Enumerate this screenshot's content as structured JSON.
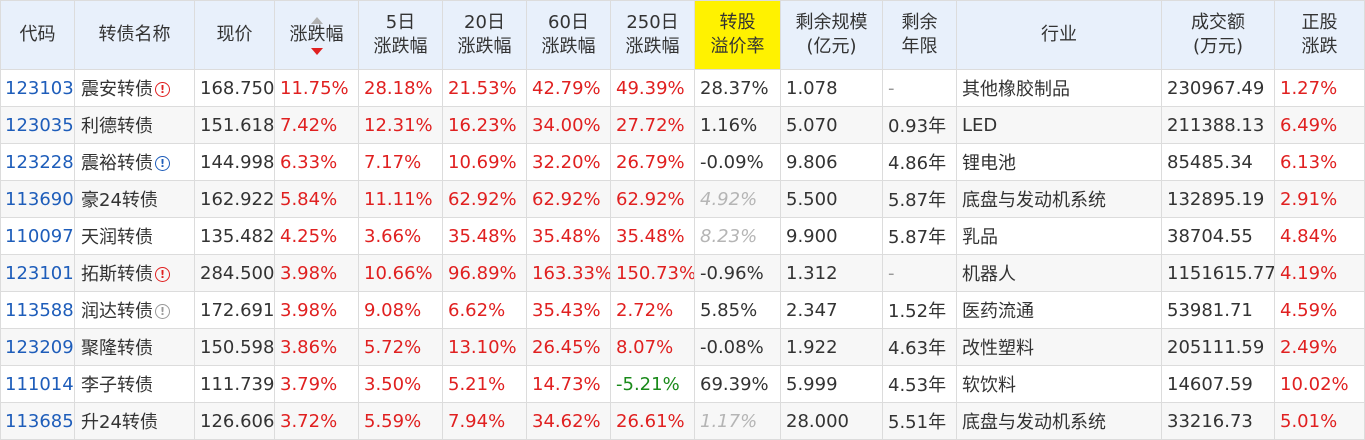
{
  "headers": {
    "code": "代码",
    "name": "转债名称",
    "price": "现价",
    "change": "涨跌幅",
    "chg5_line1": "5日",
    "chg5_line2": "涨跌幅",
    "chg20_line1": "20日",
    "chg20_line2": "涨跌幅",
    "chg60_line1": "60日",
    "chg60_line2": "涨跌幅",
    "chg250_line1": "250日",
    "chg250_line2": "涨跌幅",
    "premium_line1": "转股",
    "premium_line2": "溢价率",
    "remain_scale_line1": "剩余规模",
    "remain_scale_line2": "(亿元)",
    "remain_years_line1": "剩余",
    "remain_years_line2": "年限",
    "industry": "行业",
    "turnover_line1": "成交额",
    "turnover_line2": "(万元)",
    "stock_change_line1": "正股",
    "stock_change_line2": "涨跌"
  },
  "rows": [
    {
      "code": "123103",
      "name": "震安转债",
      "badge": "red",
      "price": "168.750",
      "change": "11.75%",
      "chg5": "28.18%",
      "chg20": "21.53%",
      "chg60": "42.79%",
      "chg250": "49.39%",
      "premium": "28.37%",
      "premium_muted": false,
      "scale": "1.078",
      "years": "-",
      "industry": "其他橡胶制品",
      "turnover": "230967.49",
      "stock_change": "1.27%"
    },
    {
      "code": "123035",
      "name": "利德转债",
      "badge": "",
      "price": "151.618",
      "change": "7.42%",
      "chg5": "12.31%",
      "chg20": "16.23%",
      "chg60": "34.00%",
      "chg250": "27.72%",
      "premium": "1.16%",
      "premium_muted": false,
      "scale": "5.070",
      "years": "0.93年",
      "industry": "LED",
      "turnover": "211388.13",
      "stock_change": "6.49%"
    },
    {
      "code": "123228",
      "name": "震裕转债",
      "badge": "blue",
      "price": "144.998",
      "change": "6.33%",
      "chg5": "7.17%",
      "chg20": "10.69%",
      "chg60": "32.20%",
      "chg250": "26.79%",
      "premium": "-0.09%",
      "premium_muted": false,
      "scale": "9.806",
      "years": "4.86年",
      "industry": "锂电池",
      "turnover": "85485.34",
      "stock_change": "6.13%"
    },
    {
      "code": "113690",
      "name": "豪24转债",
      "badge": "",
      "price": "162.922",
      "change": "5.84%",
      "chg5": "11.11%",
      "chg20": "62.92%",
      "chg60": "62.92%",
      "chg250": "62.92%",
      "premium": "4.92%",
      "premium_muted": true,
      "scale": "5.500",
      "years": "5.87年",
      "industry": "底盘与发动机系统",
      "turnover": "132895.19",
      "stock_change": "2.91%"
    },
    {
      "code": "110097",
      "name": "天润转债",
      "badge": "",
      "price": "135.482",
      "change": "4.25%",
      "chg5": "3.66%",
      "chg20": "35.48%",
      "chg60": "35.48%",
      "chg250": "35.48%",
      "premium": "8.23%",
      "premium_muted": true,
      "scale": "9.900",
      "years": "5.87年",
      "industry": "乳品",
      "turnover": "38704.55",
      "stock_change": "4.84%"
    },
    {
      "code": "123101",
      "name": "拓斯转债",
      "badge": "red",
      "price": "284.500",
      "change": "3.98%",
      "chg5": "10.66%",
      "chg20": "96.89%",
      "chg60": "163.33%",
      "chg250": "150.73%",
      "premium": "-0.96%",
      "premium_muted": false,
      "scale": "1.312",
      "years": "-",
      "industry": "机器人",
      "turnover": "1151615.77",
      "stock_change": "4.19%"
    },
    {
      "code": "113588",
      "name": "润达转债",
      "badge": "gray",
      "price": "172.691",
      "change": "3.98%",
      "chg5": "9.08%",
      "chg20": "6.62%",
      "chg60": "35.43%",
      "chg250": "2.72%",
      "premium": "5.85%",
      "premium_muted": false,
      "scale": "2.347",
      "years": "1.52年",
      "industry": "医药流通",
      "turnover": "53981.71",
      "stock_change": "4.59%"
    },
    {
      "code": "123209",
      "name": "聚隆转债",
      "badge": "",
      "price": "150.598",
      "change": "3.86%",
      "chg5": "5.72%",
      "chg20": "13.10%",
      "chg60": "26.45%",
      "chg250": "8.07%",
      "premium": "-0.08%",
      "premium_muted": false,
      "scale": "1.922",
      "years": "4.63年",
      "industry": "改性塑料",
      "turnover": "205111.59",
      "stock_change": "2.49%"
    },
    {
      "code": "111014",
      "name": "李子转债",
      "badge": "",
      "price": "111.739",
      "change": "3.79%",
      "chg5": "3.50%",
      "chg20": "5.21%",
      "chg60": "14.73%",
      "chg250": "-5.21%",
      "premium": "69.39%",
      "premium_muted": false,
      "scale": "5.999",
      "years": "4.53年",
      "industry": "软饮料",
      "turnover": "14607.59",
      "stock_change": "10.02%"
    },
    {
      "code": "113685",
      "name": "升24转债",
      "badge": "",
      "price": "126.606",
      "change": "3.72%",
      "chg5": "5.59%",
      "chg20": "7.94%",
      "chg60": "34.62%",
      "chg250": "26.61%",
      "premium": "1.17%",
      "premium_muted": true,
      "scale": "28.000",
      "years": "5.51年",
      "industry": "底盘与发动机系统",
      "turnover": "33216.73",
      "stock_change": "5.01%"
    }
  ],
  "badge_glyphs": {
    "red": "!",
    "blue": "!",
    "gray": "!"
  },
  "colors": {
    "up": "#e02020",
    "down": "#1a8a1a",
    "link": "#1e5dba",
    "highlight": "#fff200",
    "header_bg": "#e8f0fb"
  }
}
